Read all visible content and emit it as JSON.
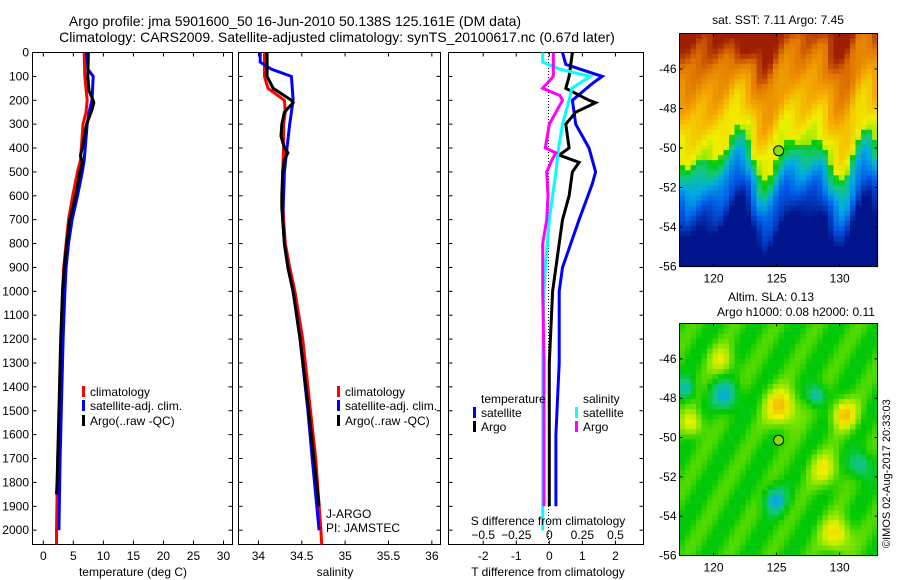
{
  "title_line1": "Argo profile: jma 5901600_50 16-Jun-2010 50.138S 125.161E (DM data)",
  "title_line2": "Climatology: CARS2009. Satellite-adjusted climatology: synTS_20100617.nc (0.67d later)",
  "colors": {
    "climatology": "#ff0000",
    "satellite": "#0000ff",
    "argo": "#000000",
    "sal_satellite": "#00ffff",
    "sal_argo": "#ff00ff"
  },
  "chart_data": [
    {
      "type": "line",
      "id": "temperature",
      "xlabel": "temperature (deg C)",
      "ylabel": "",
      "xlim": [
        -1.8,
        31.5
      ],
      "ylim": [
        0,
        2060
      ],
      "xticks": [
        0,
        5,
        10,
        15,
        20,
        25,
        30
      ],
      "yticks": [
        0,
        100,
        200,
        300,
        400,
        500,
        600,
        700,
        800,
        900,
        1000,
        1100,
        1200,
        1300,
        1400,
        1500,
        1600,
        1700,
        1800,
        1900,
        2000
      ],
      "legend": [
        "climatology",
        "satellite-adj. clim.",
        "Argo(..raw -QC)"
      ],
      "legend_position": "center-right",
      "series": [
        {
          "name": "climatology",
          "depth": [
            0,
            100,
            200,
            250,
            300,
            450,
            500,
            600,
            700,
            800,
            900,
            1000,
            1200,
            1500,
            1700,
            2000,
            2060
          ],
          "values": [
            6.8,
            6.9,
            7.3,
            7.1,
            6.6,
            6.2,
            5.7,
            4.9,
            4.2,
            3.8,
            3.4,
            3.2,
            3.0,
            2.7,
            2.4,
            2.2,
            2.2
          ]
        },
        {
          "name": "satellite-adj. clim.",
          "depth": [
            0,
            70,
            100,
            200,
            250,
            300,
            450,
            500,
            600,
            700,
            800,
            900,
            1000,
            1200,
            1500,
            1700,
            2000
          ],
          "values": [
            7.2,
            7.4,
            8.3,
            8.1,
            7.6,
            7.3,
            6.8,
            6.5,
            5.7,
            4.8,
            4.2,
            3.8,
            3.6,
            3.3,
            3.0,
            2.8,
            2.6
          ]
        },
        {
          "name": "Argo(..raw -QC)",
          "depth": [
            0,
            100,
            160,
            200,
            210,
            240,
            300,
            400,
            430,
            460,
            500,
            600,
            700,
            800,
            900,
            1000,
            1200,
            1500,
            1800,
            1850
          ],
          "values": [
            7.5,
            7.4,
            7.6,
            8.3,
            8.4,
            8.1,
            7.2,
            6.5,
            6.2,
            6.5,
            6.1,
            5.4,
            4.4,
            3.9,
            3.5,
            3.2,
            2.9,
            2.6,
            2.3,
            2.2
          ]
        }
      ]
    },
    {
      "type": "line",
      "id": "salinity",
      "xlabel": "salinity",
      "xlim": [
        33.77,
        36.1
      ],
      "ylim": [
        0,
        2060
      ],
      "xticks": [
        34,
        34.5,
        35,
        35.5,
        36
      ],
      "legend": [
        "climatology",
        "satellite-adj. clim.",
        "Argo(..raw -QC)"
      ],
      "legend_position": "center-right",
      "annotation": [
        "J-ARGO",
        "PI: JAMSTEC"
      ],
      "series": [
        {
          "name": "climatology",
          "depth": [
            0,
            100,
            150,
            200,
            250,
            300,
            400,
            500,
            600,
            700,
            800,
            900,
            1000,
            1200,
            1500,
            1700,
            2000,
            2060
          ],
          "values": [
            34.07,
            34.07,
            34.11,
            34.3,
            34.31,
            34.29,
            34.29,
            34.28,
            34.28,
            34.29,
            34.31,
            34.36,
            34.42,
            34.51,
            34.6,
            34.66,
            34.72,
            34.73
          ]
        },
        {
          "name": "satellite-adj. clim.",
          "depth": [
            0,
            40,
            70,
            100,
            150,
            200,
            250,
            300,
            400,
            500,
            600,
            700,
            800,
            900,
            1000,
            1200,
            1500,
            1700,
            2000
          ],
          "values": [
            34.02,
            34.02,
            34.15,
            34.38,
            34.39,
            34.4,
            34.38,
            34.36,
            34.33,
            34.3,
            34.29,
            34.28,
            34.3,
            34.34,
            34.4,
            34.48,
            34.57,
            34.62,
            34.7
          ]
        },
        {
          "name": "Argo(..raw -QC)",
          "depth": [
            0,
            100,
            150,
            200,
            210,
            250,
            300,
            350,
            400,
            420,
            450,
            500,
            600,
            650,
            700,
            800,
            900,
            1000,
            1200,
            1500,
            1900
          ],
          "values": [
            34.1,
            34.1,
            34.17,
            34.38,
            34.4,
            34.3,
            34.27,
            34.26,
            34.3,
            34.34,
            34.3,
            34.28,
            34.27,
            34.27,
            34.28,
            34.3,
            34.34,
            34.4,
            34.48,
            34.58,
            34.7
          ]
        }
      ]
    },
    {
      "type": "line",
      "id": "difference",
      "xlabel": "T difference from climatology",
      "xlabel_top": "S difference from climatology",
      "xlim": [
        -3.05,
        2.85
      ],
      "xticks": [
        -2,
        -1,
        0,
        1,
        2
      ],
      "xticks_top": [
        -0.5,
        -0.25,
        0,
        0.25,
        0.5
      ],
      "ylim": [
        0,
        2060
      ],
      "legend_titles": [
        "temperature",
        "salinity"
      ],
      "legend": [
        "satellite",
        "Argo",
        "satellite",
        "Argo"
      ],
      "legend_position": "lower-center",
      "series": [
        {
          "name": "temperature satellite",
          "depth": [
            0,
            50,
            100,
            130,
            200,
            300,
            400,
            500,
            550,
            700,
            900,
            1000,
            1300,
            1600,
            1900
          ],
          "values": [
            0.4,
            0.5,
            1.6,
            1.3,
            0.7,
            0.8,
            1.2,
            1.4,
            1.3,
            0.9,
            0.4,
            0.3,
            0.3,
            0.2,
            0.2
          ]
        },
        {
          "name": "temperature Argo",
          "depth": [
            0,
            100,
            150,
            200,
            210,
            250,
            300,
            400,
            430,
            460,
            500,
            600,
            700,
            800,
            900,
            1000,
            1300,
            1600,
            1900
          ],
          "values": [
            0.7,
            0.6,
            0.5,
            1.2,
            1.4,
            0.8,
            0.5,
            0.6,
            0.3,
            0.9,
            0.7,
            0.6,
            0.4,
            0.3,
            0.2,
            0.1,
            0.0,
            0.0,
            0.0
          ]
        },
        {
          "name": "salinity satellite",
          "depth": [
            0,
            40,
            70,
            100,
            150,
            200,
            300,
            400,
            500,
            700,
            900,
            1000,
            1300,
            1600,
            1900,
            2000
          ],
          "values": [
            -0.05,
            -0.05,
            0.08,
            0.31,
            0.17,
            0.15,
            0.1,
            0.07,
            0.05,
            0.0,
            -0.03,
            -0.04,
            -0.05,
            -0.05,
            -0.05,
            -0.05
          ]
        },
        {
          "name": "salinity Argo",
          "depth": [
            0,
            100,
            150,
            180,
            200,
            300,
            400,
            420,
            450,
            500,
            600,
            700,
            800,
            900,
            1000,
            1300,
            1600,
            1900
          ],
          "values": [
            0.03,
            0.03,
            -0.05,
            0.08,
            0.1,
            0.0,
            -0.03,
            0.05,
            0.02,
            -0.02,
            -0.01,
            -0.02,
            -0.05,
            -0.05,
            -0.05,
            -0.04,
            -0.04,
            -0.04
          ]
        }
      ]
    },
    {
      "type": "heatmap",
      "id": "sst-map",
      "title": "sat. SST: 7.11 Argo: 7.45",
      "xlim": [
        117.3,
        133
      ],
      "ylim": [
        -56,
        -44.2
      ],
      "xticks": [
        120,
        125,
        130
      ],
      "yticks": [
        -46,
        -48,
        -50,
        -52,
        -54,
        -56
      ],
      "marker": {
        "lon": 125.161,
        "lat": -50.138
      }
    },
    {
      "type": "heatmap",
      "id": "sla-map",
      "title": "Altim. SLA: 0.13",
      "subtitle": "Argo h1000: 0.08 h2000: 0.11",
      "xlim": [
        117.3,
        133
      ],
      "ylim": [
        -56,
        -44.2
      ],
      "xticks": [
        120,
        125,
        130
      ],
      "yticks": [
        -46,
        -48,
        -50,
        -52,
        -54,
        -56
      ],
      "marker": {
        "lon": 125.161,
        "lat": -50.138
      }
    }
  ],
  "credit": "©IMOS 02-Aug-2017 20:33:03"
}
